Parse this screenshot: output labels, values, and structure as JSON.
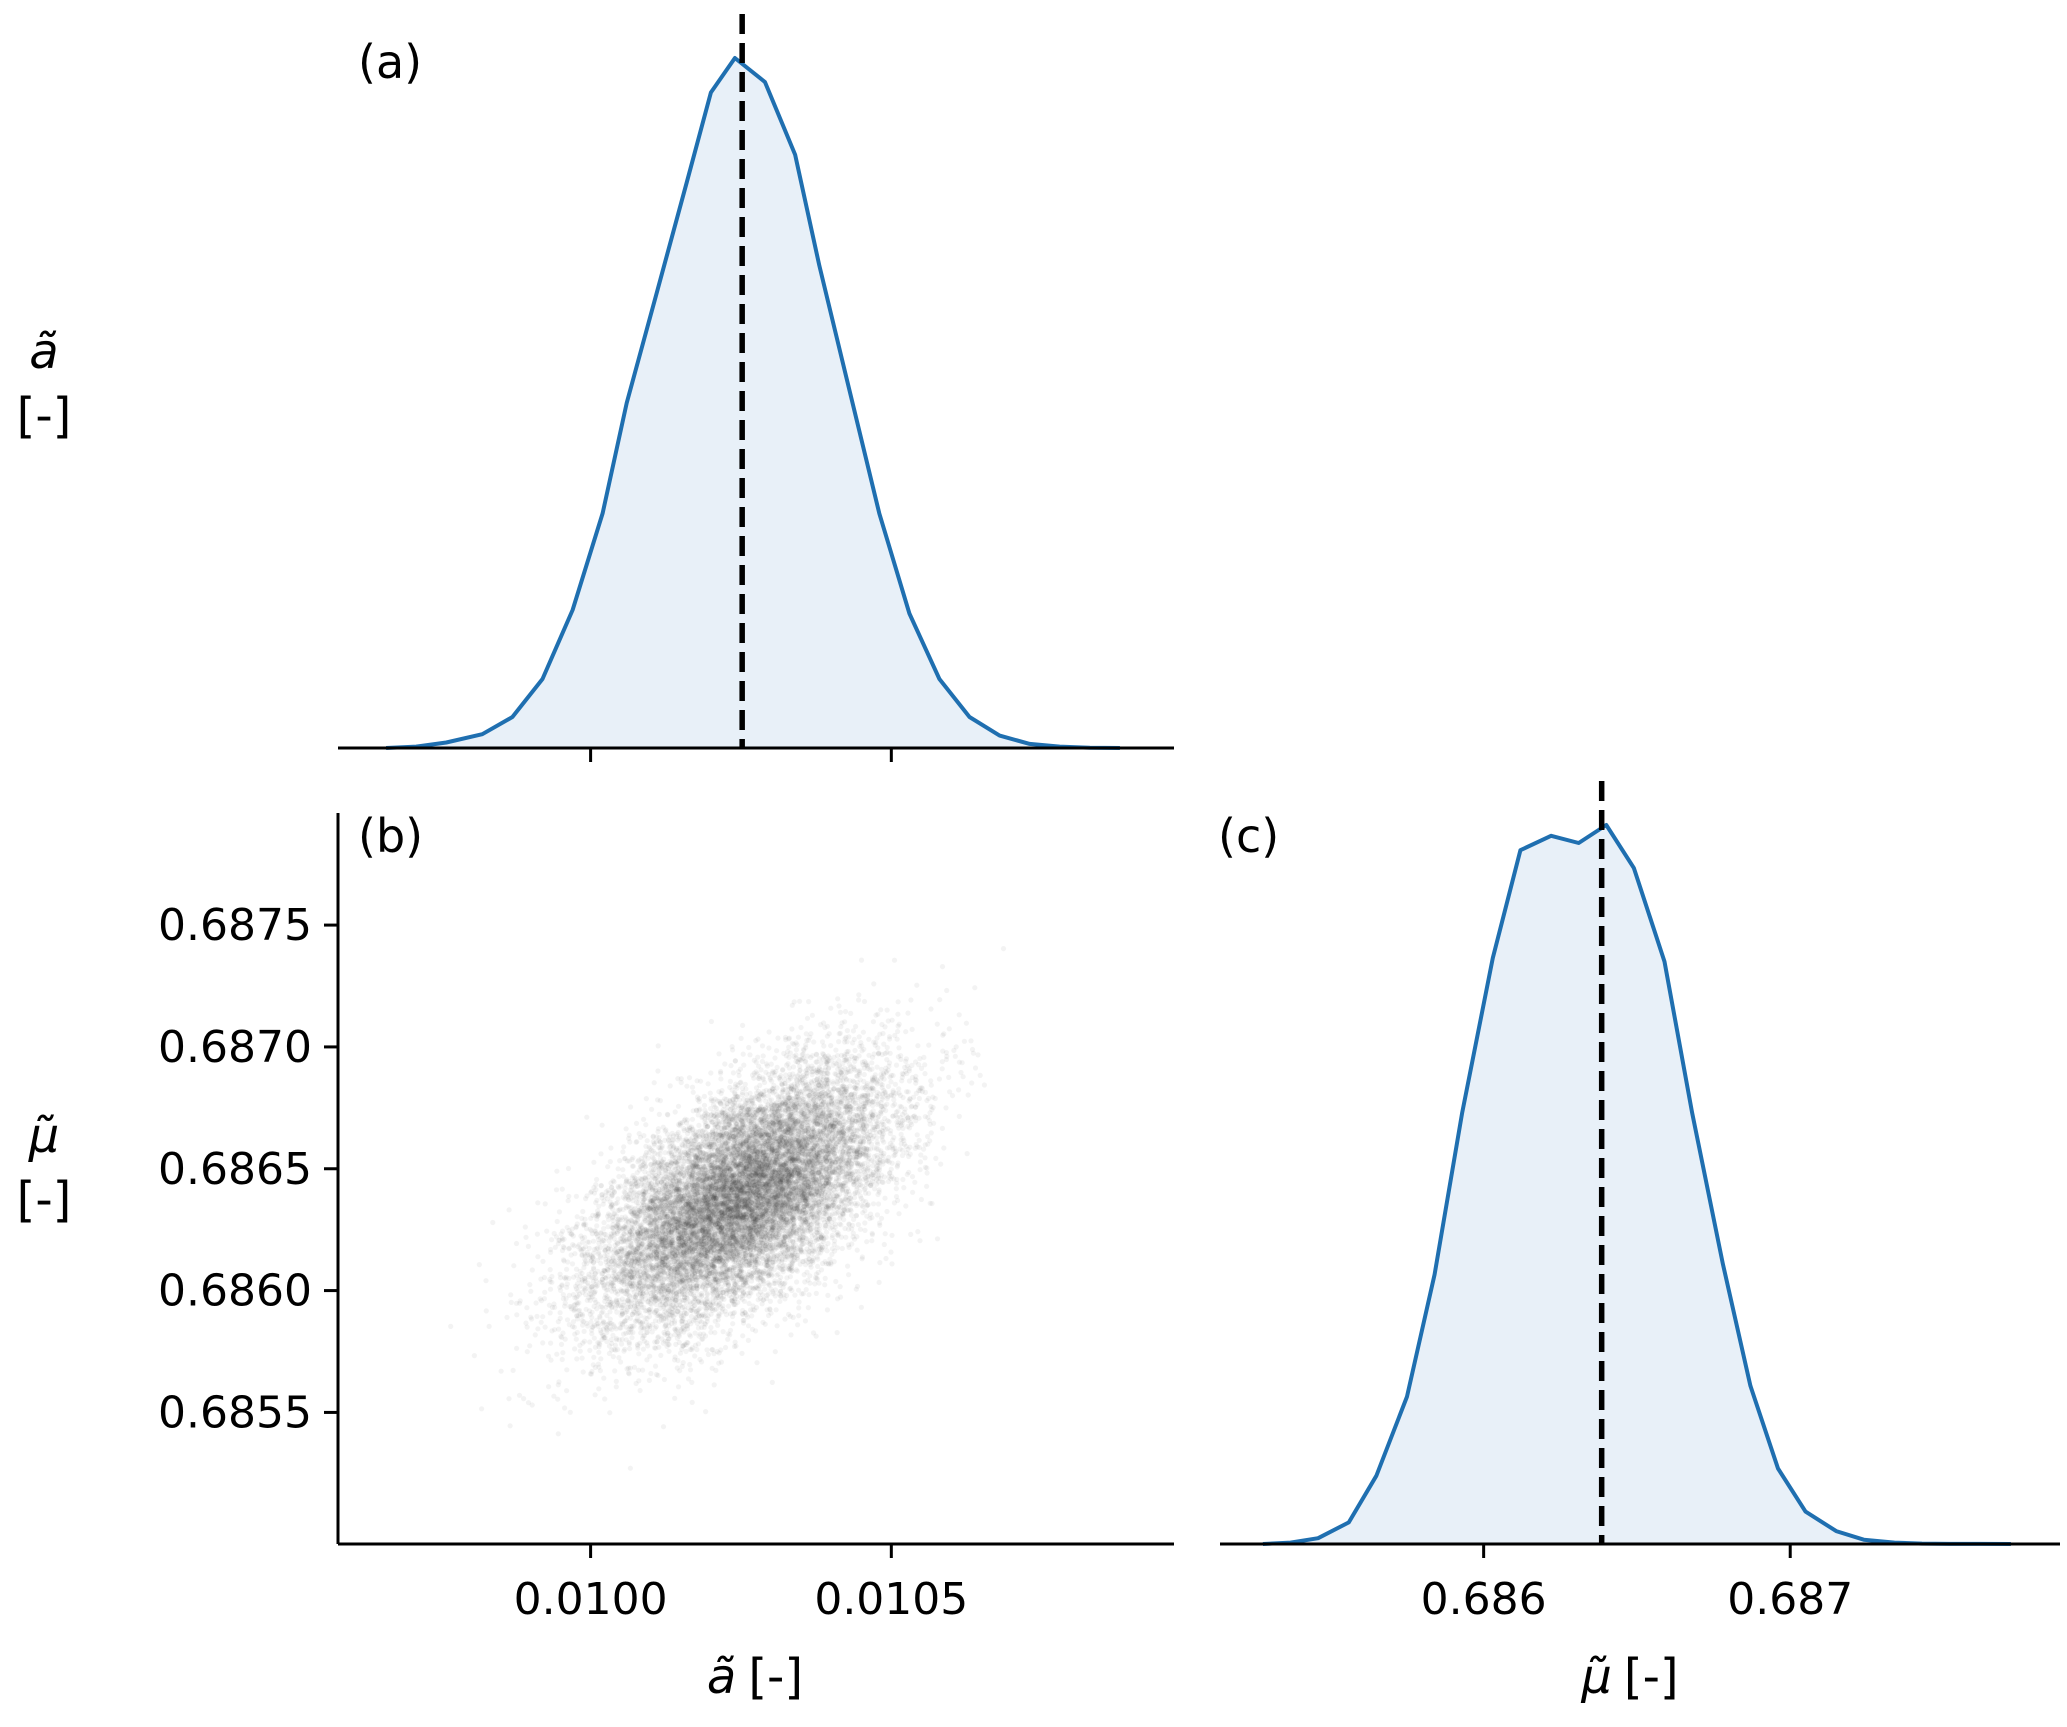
{
  "chart_data": [
    {
      "id": "a",
      "type": "area",
      "panel_label": "(a)",
      "title": "",
      "xlabel": "",
      "ylabel_symbol": "ã",
      "ylabel_unit": "[-]",
      "xlim": [
        0.00958,
        0.01097
      ],
      "ylim": [
        0,
        1.0
      ],
      "xticks": [
        {
          "value": 0.01,
          "label": ""
        },
        {
          "value": 0.0105,
          "label": ""
        }
      ],
      "reference_line": 0.010252,
      "color": "#1f6fb0",
      "fill_color": "#e8f0f8",
      "x": [
        0.00966,
        0.00971,
        0.00976,
        0.00982,
        0.00987,
        0.00992,
        0.00997,
        0.01002,
        0.01006,
        0.01011,
        0.01016,
        0.0102,
        0.01024,
        0.01029,
        0.01034,
        0.01038,
        0.01043,
        0.01048,
        0.01053,
        0.01058,
        0.01063,
        0.01068,
        0.01073,
        0.01078,
        0.01083,
        0.01088
      ],
      "y": [
        0.0,
        0.002,
        0.008,
        0.02,
        0.045,
        0.1,
        0.2,
        0.34,
        0.5,
        0.66,
        0.82,
        0.95,
        1.0,
        0.965,
        0.86,
        0.7,
        0.52,
        0.34,
        0.195,
        0.1,
        0.045,
        0.018,
        0.006,
        0.002,
        0.0005,
        0.0
      ]
    },
    {
      "id": "b",
      "type": "scatter",
      "panel_label": "(b)",
      "title": "",
      "xlabel_symbol": "ã",
      "xlabel_unit": "[-]",
      "ylabel_symbol": "μ̃",
      "ylabel_unit": "[-]",
      "xlim": [
        0.00958,
        0.01097
      ],
      "ylim": [
        0.68496,
        0.68796
      ],
      "xticks": [
        {
          "value": 0.01,
          "label": "0.0100"
        },
        {
          "value": 0.0105,
          "label": "0.0105"
        }
      ],
      "yticks": [
        {
          "value": 0.6855,
          "label": "0.6855"
        },
        {
          "value": 0.686,
          "label": "0.6860"
        },
        {
          "value": 0.6865,
          "label": "0.6865"
        },
        {
          "value": 0.687,
          "label": "0.6870"
        },
        {
          "value": 0.6875,
          "label": "0.6875"
        }
      ],
      "point_color": "#3a3a3a",
      "distribution": {
        "mean_x": 0.010252,
        "mean_y": 0.686385,
        "sd_x": 0.00012,
        "sd_y": 0.00026,
        "correlation": 0.6,
        "n_points": 14000
      }
    },
    {
      "id": "c",
      "type": "area",
      "panel_label": "(c)",
      "title": "",
      "xlabel_symbol": "μ̃",
      "xlabel_unit": "[-]",
      "xlim": [
        0.68514,
        0.68788
      ],
      "ylim": [
        0,
        1.0
      ],
      "xticks": [
        {
          "value": 0.686,
          "label": "0.686"
        },
        {
          "value": 0.687,
          "label": "0.687"
        }
      ],
      "reference_line": 0.686385,
      "color": "#1f6fb0",
      "fill_color": "#e8f0f8",
      "x": [
        0.68528,
        0.68537,
        0.68546,
        0.68556,
        0.68565,
        0.68575,
        0.68584,
        0.68593,
        0.68603,
        0.68612,
        0.68622,
        0.68631,
        0.6864,
        0.68649,
        0.68659,
        0.68668,
        0.68678,
        0.68687,
        0.68696,
        0.68705,
        0.68715,
        0.68724,
        0.68734,
        0.68743,
        0.68752,
        0.68762,
        0.68772
      ],
      "y": [
        0.0,
        0.002,
        0.008,
        0.03,
        0.095,
        0.205,
        0.375,
        0.6,
        0.815,
        0.965,
        0.985,
        0.975,
        1.0,
        0.94,
        0.81,
        0.6,
        0.39,
        0.22,
        0.105,
        0.045,
        0.018,
        0.006,
        0.002,
        0.0005,
        0.0002,
        0.0001,
        0.0
      ]
    }
  ]
}
